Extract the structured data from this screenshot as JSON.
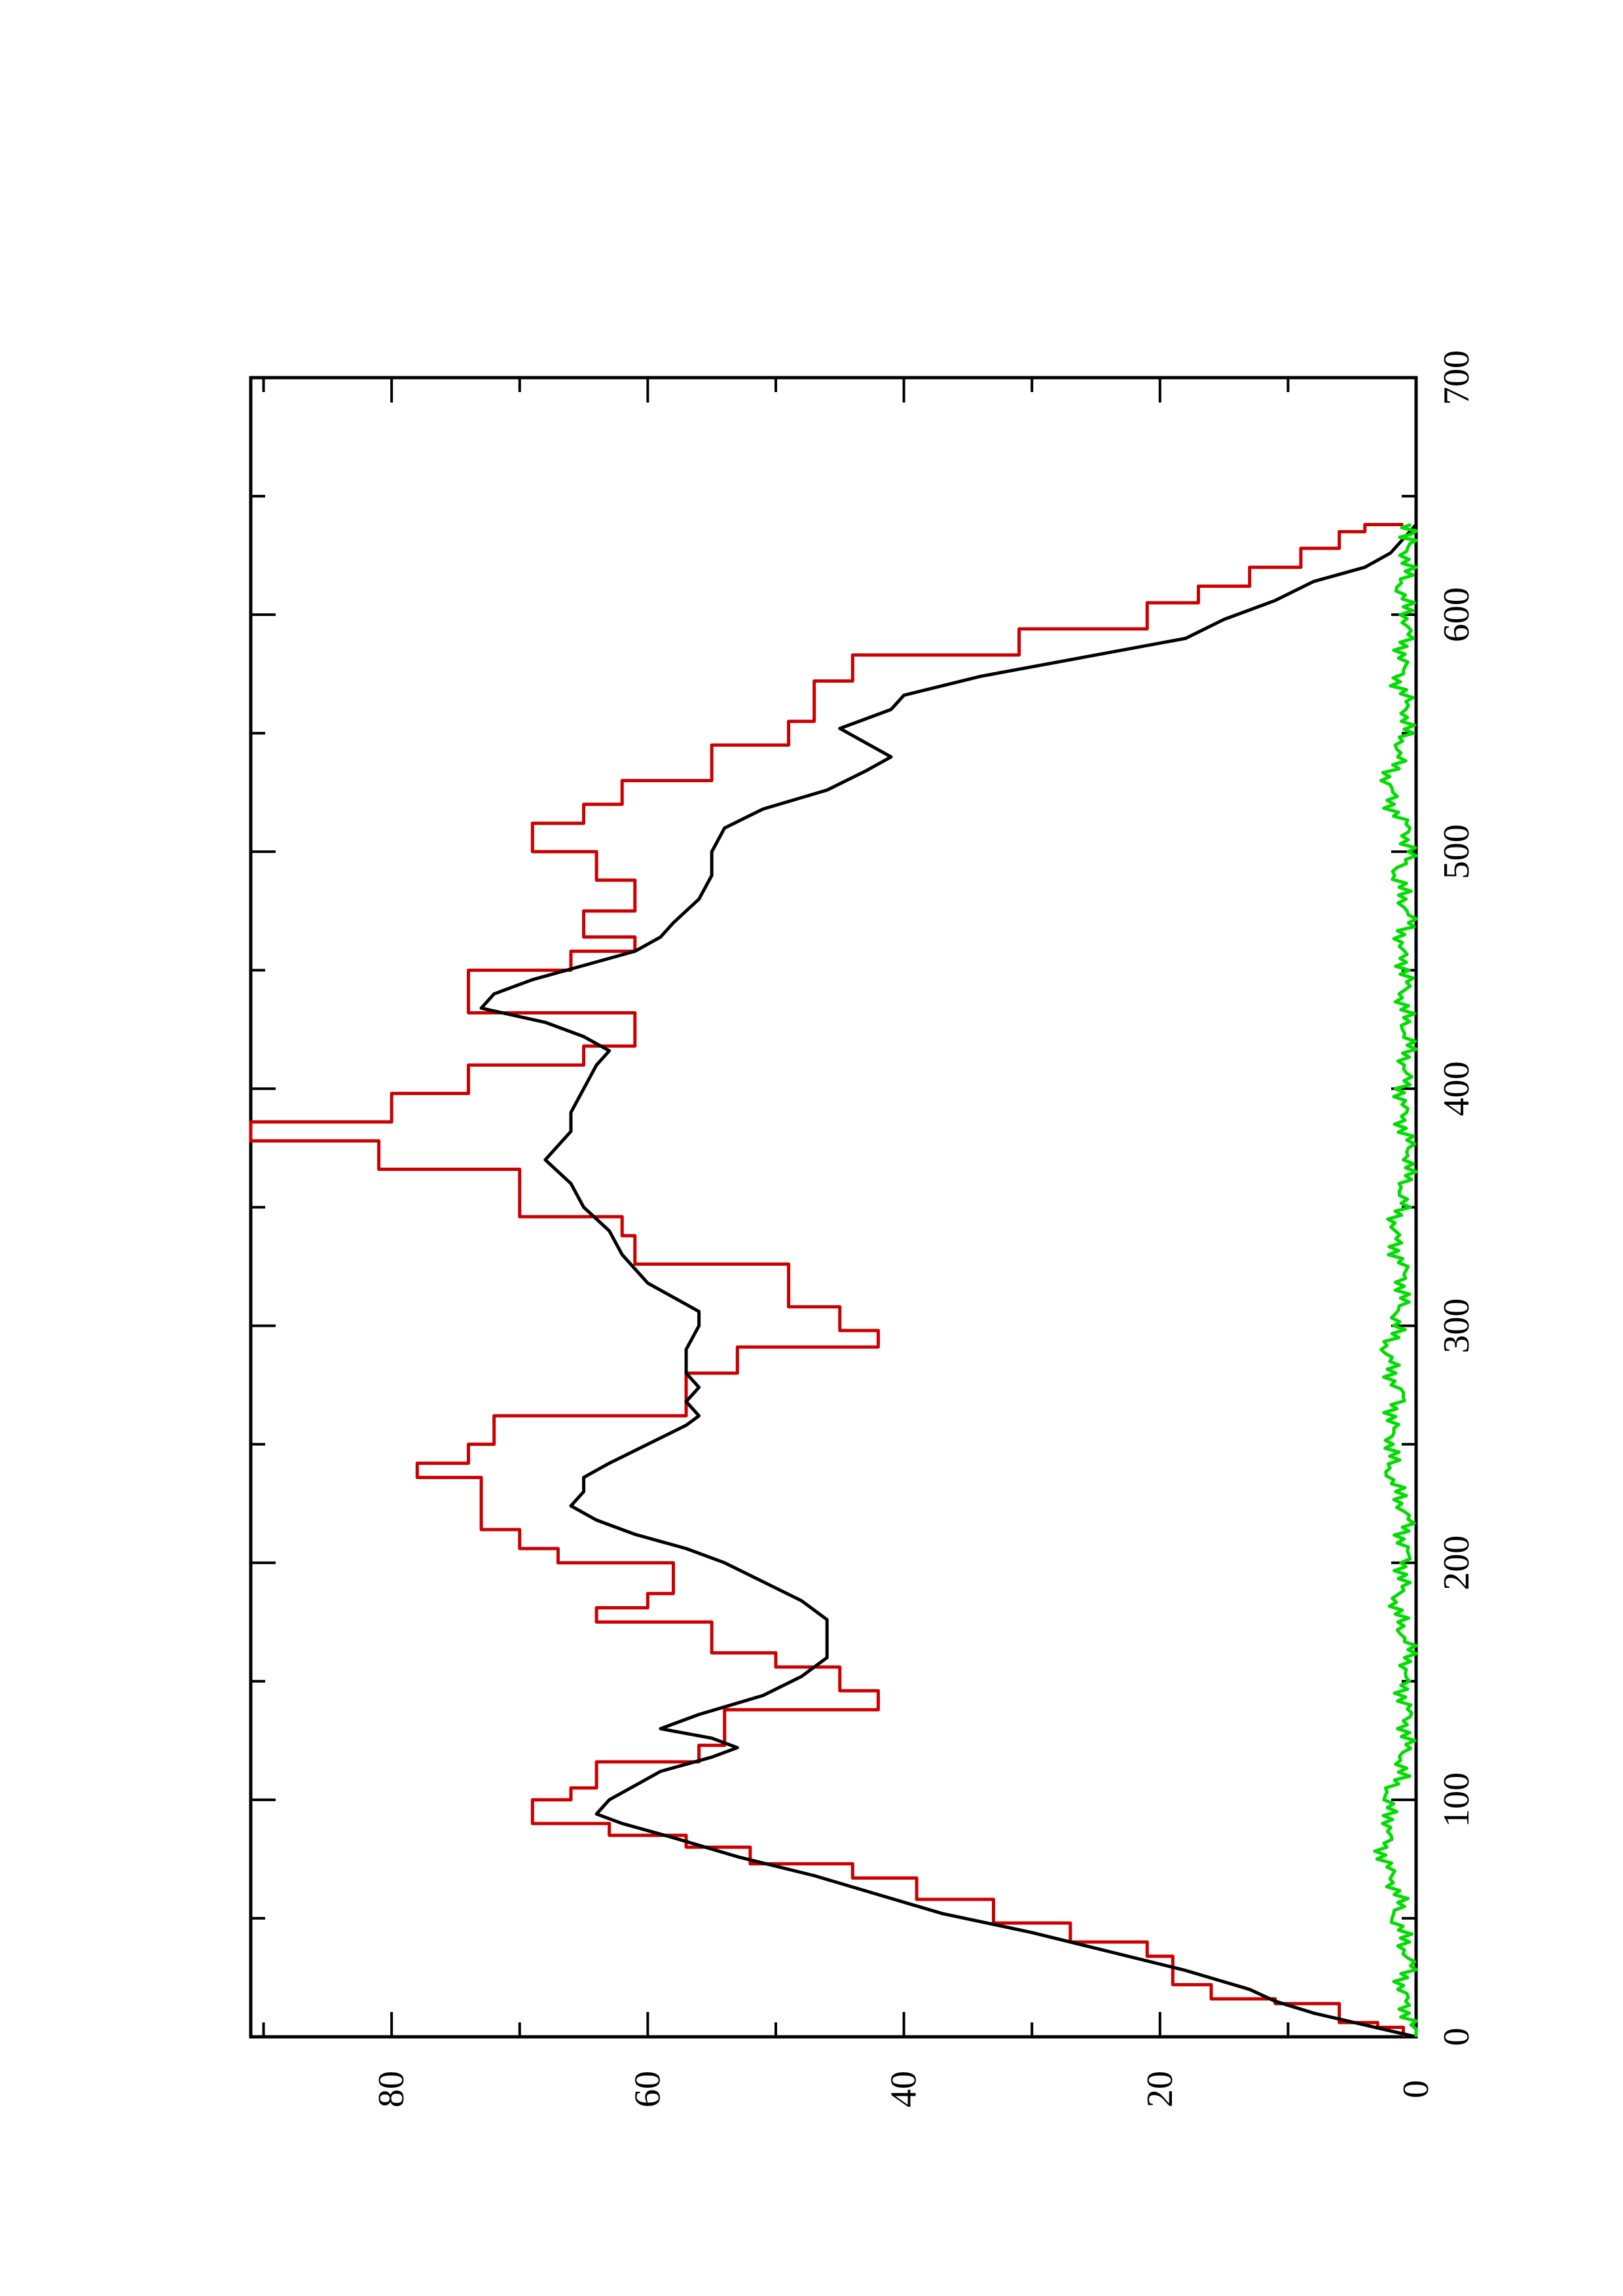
{
  "chart_data": {
    "type": "line",
    "title": "",
    "xlabel": "",
    "ylabel": "",
    "orientation": "rotated 90 degrees counter-clockwise (x axis runs bottom to top, y axis runs right to left)",
    "xlim": [
      0,
      700
    ],
    "ylim": [
      0,
      91
    ],
    "grid": false,
    "legend": "none",
    "x_ticks": [
      0,
      100,
      200,
      300,
      400,
      500,
      600,
      700
    ],
    "y_ticks": [
      0,
      20,
      40,
      60,
      80
    ],
    "series": [
      {
        "color": "#cc0000",
        "style": "step",
        "x": [
          0,
          4,
          6,
          14,
          16,
          22,
          34,
          40,
          48,
          58,
          67,
          73,
          80,
          85,
          90,
          100,
          105,
          116,
          123,
          138,
          146,
          156,
          162,
          175,
          181,
          187,
          200,
          206,
          214,
          236,
          242,
          250,
          262,
          280,
          291,
          298,
          308,
          326,
          338,
          346,
          366,
          378,
          386,
          398,
          410,
          418,
          432,
          450,
          458,
          464,
          475,
          488,
          500,
          512,
          520,
          530,
          545,
          555,
          572,
          583,
          594,
          605,
          612,
          620,
          628,
          635,
          638
        ],
        "y": [
          1,
          3,
          6,
          11,
          16,
          19,
          21,
          27,
          33,
          39,
          44,
          52,
          57,
          63,
          69,
          66,
          64,
          56,
          54,
          42,
          45,
          50,
          55,
          64,
          60,
          58,
          67,
          70,
          73,
          78,
          74,
          72,
          57,
          53,
          42,
          45,
          49,
          61,
          62,
          70,
          81,
          91,
          80,
          74,
          65,
          61,
          74,
          66,
          61,
          65,
          61,
          64,
          69,
          65,
          62,
          55,
          49,
          47,
          44,
          31,
          21,
          17,
          13,
          9,
          6,
          4,
          1
        ]
      },
      {
        "color": "#000000",
        "style": "line",
        "x": [
          0,
          5,
          10,
          15,
          20,
          28,
          36,
          44,
          52,
          60,
          68,
          76,
          84,
          90,
          94,
          100,
          106,
          112,
          118,
          122,
          126,
          130,
          136,
          144,
          152,
          160,
          168,
          176,
          184,
          192,
          200,
          206,
          212,
          218,
          224,
          230,
          236,
          242,
          250,
          258,
          262,
          268,
          274,
          280,
          290,
          300,
          306,
          312,
          318,
          324,
          330,
          340,
          350,
          360,
          370,
          376,
          382,
          390,
          400,
          410,
          416,
          422,
          428,
          434,
          440,
          446,
          452,
          458,
          464,
          470,
          480,
          490,
          500,
          510,
          518,
          526,
          534,
          540,
          546,
          552,
          560,
          566,
          574,
          582,
          590,
          598,
          606,
          614,
          620,
          626,
          632,
          638
        ],
        "y": [
          0,
          4,
          8,
          11,
          13,
          18,
          24,
          30,
          37,
          42,
          47,
          53,
          58,
          62,
          64,
          63,
          61,
          59,
          55,
          53,
          55,
          59,
          56,
          51,
          48,
          46,
          46,
          46,
          48,
          51,
          54,
          57,
          61,
          64,
          66,
          65,
          65,
          63,
          60,
          57,
          56,
          57,
          56,
          57,
          57,
          56,
          56,
          58,
          60,
          61,
          62,
          63,
          65,
          66,
          68,
          67,
          66,
          66,
          65,
          64,
          63,
          65,
          68,
          73,
          72,
          69,
          65,
          61,
          59,
          58,
          56,
          55,
          55,
          54,
          51,
          46,
          43,
          41,
          43,
          45,
          41,
          40,
          34,
          26,
          18,
          15,
          11,
          8,
          4,
          2,
          1,
          0
        ]
      },
      {
        "color": "#00dd00",
        "style": "noise",
        "x": [
          0,
          10,
          20,
          30,
          40,
          50,
          60,
          70,
          80,
          90,
          100,
          110,
          120,
          130,
          140,
          150,
          160,
          170,
          180,
          190,
          200,
          210,
          220,
          230,
          240,
          250,
          260,
          270,
          280,
          290,
          300,
          310,
          320,
          330,
          340,
          350,
          360,
          370,
          380,
          390,
          400,
          410,
          420,
          430,
          440,
          450,
          460,
          470,
          480,
          490,
          500,
          510,
          520,
          530,
          540,
          550,
          560,
          570,
          580,
          590,
          600,
          610,
          620,
          630,
          638
        ],
        "y": [
          0,
          0.6,
          1.2,
          0.5,
          0.9,
          1.6,
          1.3,
          2.2,
          2.6,
          1.9,
          2.4,
          1.3,
          0.9,
          0.7,
          0.8,
          1.1,
          0.4,
          0.9,
          1.6,
          1.2,
          0.8,
          1.0,
          0.7,
          1.5,
          2.1,
          1.8,
          2.0,
          1.2,
          1.9,
          2.3,
          1.5,
          1.2,
          0.9,
          1.4,
          1.8,
          1.2,
          0.9,
          0.4,
          0.8,
          1.1,
          1.0,
          0.8,
          0.6,
          0.9,
          1.0,
          0.7,
          1.4,
          0.5,
          0.9,
          1.6,
          0.4,
          0.8,
          1.9,
          2.2,
          1.4,
          0.9,
          0.6,
          1.3,
          1.1,
          0.8,
          0.6,
          1.2,
          0.7,
          0.6,
          0.4
        ]
      }
    ]
  }
}
